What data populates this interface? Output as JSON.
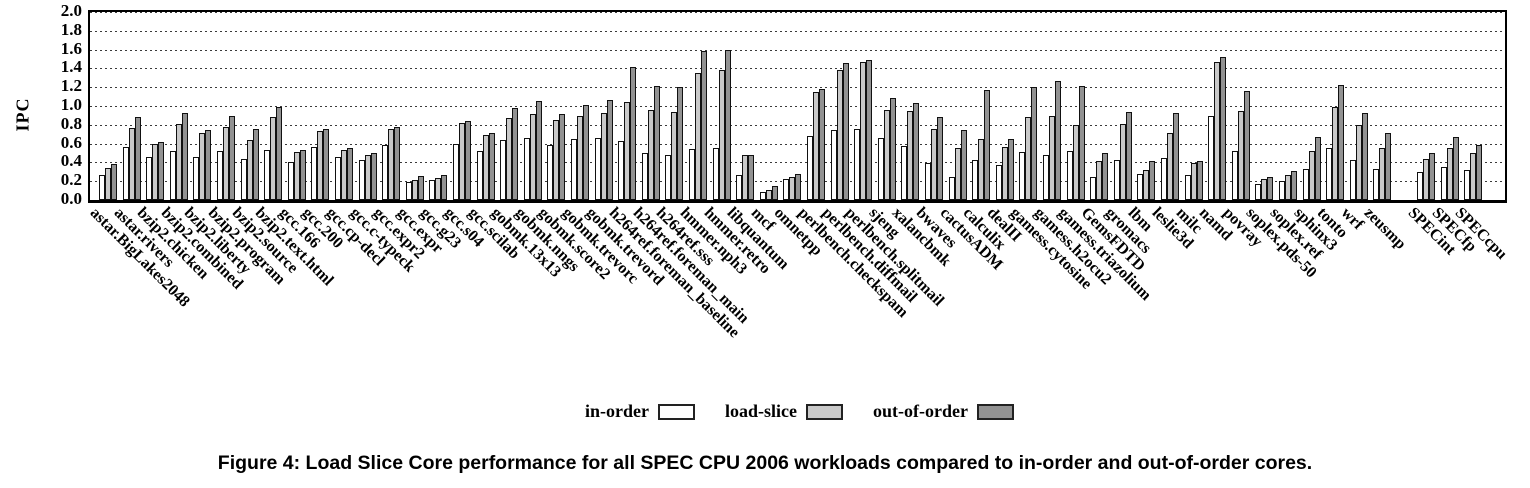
{
  "figure": {
    "caption": "Figure 4: Load Slice Core performance for all SPEC CPU 2006 workloads compared to in-order and out-of-order cores."
  },
  "chart_data": {
    "type": "bar",
    "title": "",
    "xlabel": "",
    "ylabel": "IPC",
    "ylim": [
      0.0,
      2.0
    ],
    "ytick_step": 0.2,
    "grid": "horizontal-dotted",
    "legend_position": "bottom-center",
    "bar_outline_color": "#111111",
    "gap_before_category": "SPECint",
    "categories": [
      "astar.BigLakes2048",
      "astar.rivers",
      "bzip2.chicken",
      "bzip2.combined",
      "bzip2.liberty",
      "bzip2.program",
      "bzip2.source",
      "bzip2.text.html",
      "gcc.166",
      "gcc.200",
      "gcc.cp-decl",
      "gcc.c-typeck",
      "gcc.expr2",
      "gcc.expr",
      "gcc.g23",
      "gcc.s04",
      "gcc.scilab",
      "gobmk.13x13",
      "gobmk.nngs",
      "gobmk.score2",
      "gobmk.trevorc",
      "gobmk.trevord",
      "h264ref.foreman_baseline",
      "h264ref.foreman_main",
      "h264ref.sss",
      "hmmer.nph3",
      "hmmer.retro",
      "libquantum",
      "mcf",
      "omnetpp",
      "perlbench.checkspam",
      "perlbench.diffmail",
      "perlbench.splitmail",
      "sjeng",
      "xalancbmk",
      "bwaves",
      "cactusADM",
      "calculix",
      "dealII",
      "gamess.cytosine",
      "gamess.h2ocu2",
      "gamess.triazolium",
      "GemsFDTD",
      "gromacs",
      "lbm",
      "leslie3d",
      "milc",
      "namd",
      "povray",
      "soplex.pds-50",
      "soplex.ref",
      "sphinx3",
      "tonto",
      "wrf",
      "zeusmp",
      "SPECint",
      "SPECfp",
      "SPECcpu"
    ],
    "series": [
      {
        "name": "in-order",
        "color": "#ffffff",
        "values": [
          0.27,
          0.56,
          0.46,
          0.52,
          0.46,
          0.52,
          0.44,
          0.53,
          0.4,
          0.56,
          0.46,
          0.43,
          0.58,
          0.19,
          0.21,
          0.6,
          0.52,
          0.64,
          0.66,
          0.59,
          0.65,
          0.66,
          0.63,
          0.5,
          0.48,
          0.54,
          0.55,
          0.27,
          0.09,
          0.22,
          0.68,
          0.75,
          0.76,
          0.66,
          0.57,
          0.39,
          0.25,
          0.43,
          0.37,
          0.51,
          0.48,
          0.52,
          0.25,
          0.43,
          0.28,
          0.45,
          0.27,
          0.89,
          0.52,
          0.17,
          0.2,
          0.33,
          0.55,
          0.43,
          0.33,
          0.3,
          0.35,
          0.32
        ]
      },
      {
        "name": "load-slice",
        "color": "#c9c9c9",
        "values": [
          0.34,
          0.77,
          0.6,
          0.81,
          0.71,
          0.78,
          0.64,
          0.88,
          0.51,
          0.73,
          0.53,
          0.48,
          0.76,
          0.21,
          0.23,
          0.82,
          0.69,
          0.87,
          0.91,
          0.85,
          0.89,
          0.93,
          1.04,
          0.96,
          0.94,
          1.35,
          1.38,
          0.48,
          0.11,
          0.24,
          1.15,
          1.38,
          1.47,
          0.96,
          0.95,
          0.76,
          0.55,
          0.65,
          0.56,
          0.88,
          0.89,
          0.8,
          0.41,
          0.81,
          0.32,
          0.71,
          0.39,
          1.47,
          0.95,
          0.22,
          0.27,
          0.52,
          0.99,
          0.8,
          0.55,
          0.44,
          0.55,
          0.5
        ]
      },
      {
        "name": "out-of-order",
        "color": "#929292",
        "values": [
          0.38,
          0.88,
          0.62,
          0.93,
          0.75,
          0.89,
          0.76,
          0.99,
          0.53,
          0.76,
          0.55,
          0.5,
          0.78,
          0.26,
          0.27,
          0.84,
          0.71,
          0.98,
          1.05,
          0.92,
          1.01,
          1.06,
          1.41,
          1.21,
          1.2,
          1.58,
          1.6,
          0.48,
          0.15,
          0.28,
          1.18,
          1.46,
          1.49,
          1.09,
          1.03,
          0.88,
          0.74,
          1.17,
          0.65,
          1.2,
          1.27,
          1.21,
          0.5,
          0.94,
          0.41,
          0.93,
          0.41,
          1.52,
          1.16,
          0.24,
          0.31,
          0.67,
          1.22,
          0.93,
          0.71,
          0.5,
          0.67,
          0.59
        ]
      }
    ]
  }
}
